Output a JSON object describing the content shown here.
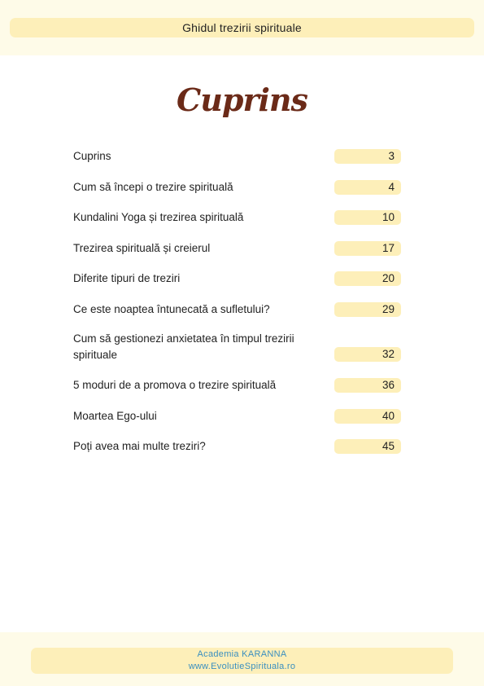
{
  "header": {
    "title": "Ghidul trezirii spirituale"
  },
  "page": {
    "title": "Cuprins"
  },
  "toc": {
    "entries": [
      {
        "label": "Cuprins",
        "page": "3"
      },
      {
        "label": "Cum să începi o trezire spirituală",
        "page": "4"
      },
      {
        "label": "Kundalini Yoga și trezirea spirituală",
        "page": "10"
      },
      {
        "label": "Trezirea spirituală și creierul",
        "page": "17"
      },
      {
        "label": "Diferite tipuri de treziri",
        "page": "20"
      },
      {
        "label": "Ce este noaptea întunecată a sufletului?",
        "page": "29"
      },
      {
        "label": "Cum să gestionezi anxietatea în timpul trezirii spirituale",
        "page": "32"
      },
      {
        "label": "5 moduri de a promova o trezire spirituală",
        "page": "36"
      },
      {
        "label": "Moartea Ego-ului",
        "page": "40"
      },
      {
        "label": "Poți avea mai multe treziri?",
        "page": "45"
      }
    ]
  },
  "footer": {
    "line1": "Academia KARANNA",
    "line2": "www.EvolutieSpirituala.ro"
  },
  "colors": {
    "accent_band": "#fdefb9",
    "title_color": "#6b2a18",
    "footer_text": "#3a8fc0"
  }
}
